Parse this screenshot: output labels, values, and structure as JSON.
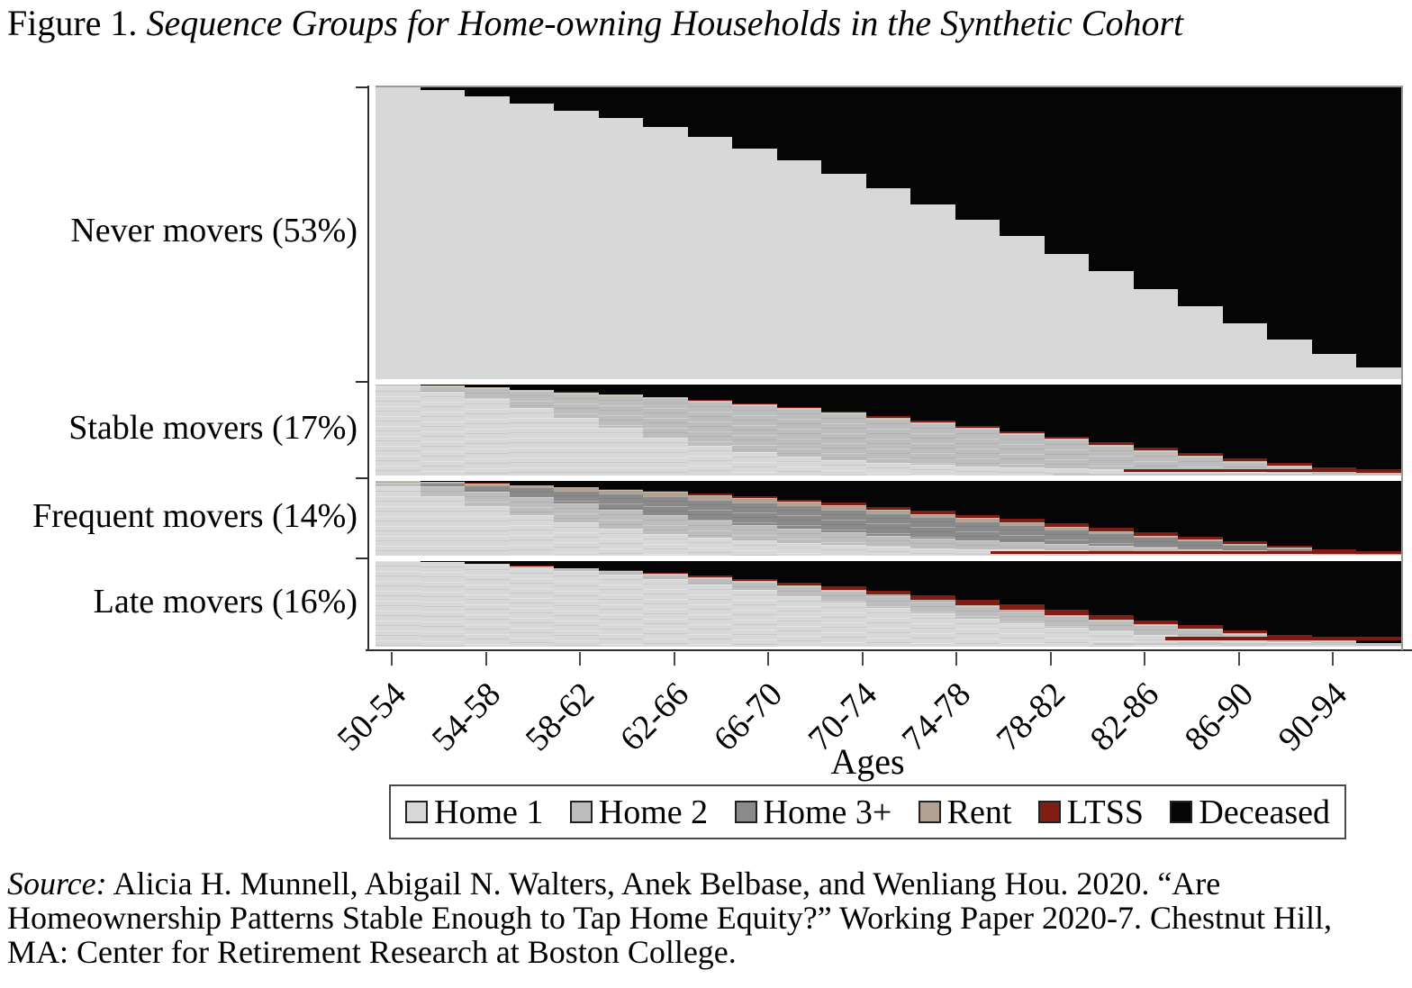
{
  "title": {
    "figure_label": "Figure 1.",
    "text": "Sequence Groups for Home-owning Households in the Synthetic Cohort"
  },
  "chart_data": {
    "type": "sequence-index",
    "description": "Sequence (status) plot: share of households in each housing state by age, for four mover groups. Values are estimated fractions per 2-year period read from the figure.",
    "x_axis": {
      "label": "Ages",
      "tick_labels": [
        "50-54",
        "54-58",
        "58-62",
        "62-66",
        "66-70",
        "70-74",
        "74-78",
        "78-82",
        "82-86",
        "86-90",
        "90-94"
      ],
      "age_start": 50,
      "age_end": 96,
      "periods": 23,
      "period_width_years": 2
    },
    "states": [
      {
        "key": "home1",
        "label": "Home 1",
        "color": "#d8d8d8"
      },
      {
        "key": "home2",
        "label": "Home 2",
        "color": "#bdbdbd"
      },
      {
        "key": "home3plus",
        "label": "Home 3+",
        "color": "#8a8a8a"
      },
      {
        "key": "rent",
        "label": "Rent",
        "color": "#b0a190"
      },
      {
        "key": "ltss",
        "label": "LTSS",
        "color": "#811d12"
      },
      {
        "key": "deceased",
        "label": "Deceased",
        "color": "#050505"
      }
    ],
    "stack_order_bottom_to_top": [
      "home1",
      "home2",
      "home3plus",
      "rent",
      "ltss",
      "deceased"
    ],
    "groups": [
      {
        "name": "Never movers",
        "share_pct": 53,
        "label": "Never movers (53%)",
        "composition": {
          "home1": [
            1.0,
            0.99,
            0.97,
            0.945,
            0.92,
            0.895,
            0.865,
            0.83,
            0.79,
            0.75,
            0.705,
            0.655,
            0.6,
            0.545,
            0.49,
            0.43,
            0.37,
            0.31,
            0.25,
            0.19,
            0.135,
            0.085,
            0.04
          ],
          "home2": [
            0,
            0,
            0,
            0,
            0,
            0,
            0,
            0,
            0,
            0,
            0,
            0,
            0,
            0,
            0,
            0,
            0,
            0,
            0,
            0,
            0,
            0,
            0
          ],
          "home3plus": [
            0,
            0,
            0,
            0,
            0,
            0,
            0,
            0,
            0,
            0,
            0,
            0,
            0,
            0,
            0,
            0,
            0,
            0,
            0,
            0,
            0,
            0,
            0
          ],
          "rent": [
            0,
            0,
            0,
            0,
            0,
            0,
            0,
            0,
            0,
            0,
            0,
            0,
            0,
            0,
            0,
            0,
            0,
            0,
            0,
            0,
            0,
            0,
            0
          ],
          "ltss": [
            0,
            0,
            0,
            0,
            0,
            0,
            0,
            0,
            0,
            0,
            0,
            0,
            0,
            0,
            0,
            0,
            0,
            0,
            0,
            0,
            0,
            0,
            0
          ],
          "deceased": [
            0,
            0.01,
            0.03,
            0.055,
            0.08,
            0.105,
            0.135,
            0.17,
            0.21,
            0.25,
            0.295,
            0.345,
            0.4,
            0.455,
            0.51,
            0.57,
            0.63,
            0.69,
            0.75,
            0.81,
            0.865,
            0.915,
            0.96
          ]
        }
      },
      {
        "name": "Stable movers",
        "share_pct": 17,
        "label": "Stable movers (17%)",
        "composition": {
          "home1": [
            0.98,
            0.92,
            0.84,
            0.74,
            0.63,
            0.52,
            0.42,
            0.33,
            0.26,
            0.21,
            0.17,
            0.14,
            0.12,
            0.1,
            0.09,
            0.08,
            0.07,
            0.06,
            0.05,
            0.04,
            0.03,
            0.02,
            0.01
          ],
          "home2": [
            0.01,
            0.058,
            0.117,
            0.191,
            0.275,
            0.359,
            0.428,
            0.482,
            0.51,
            0.518,
            0.51,
            0.487,
            0.45,
            0.413,
            0.365,
            0.312,
            0.26,
            0.208,
            0.155,
            0.105,
            0.065,
            0.035,
            0.012
          ],
          "home3plus": [
            0,
            0,
            0,
            0,
            0,
            0,
            0,
            0,
            0,
            0,
            0,
            0,
            0,
            0,
            0,
            0,
            0,
            0,
            0,
            0,
            0,
            0,
            0
          ],
          "rent": [
            0.01,
            0.01,
            0.01,
            0.01,
            0.01,
            0.01,
            0.01,
            0.01,
            0.01,
            0.01,
            0.01,
            0.01,
            0.01,
            0.01,
            0.01,
            0.01,
            0.01,
            0.01,
            0.01,
            0.01,
            0.01,
            0.005,
            0.003
          ],
          "ltss": [
            0,
            0.002,
            0.003,
            0.004,
            0.005,
            0.006,
            0.007,
            0.008,
            0.01,
            0.012,
            0.015,
            0.018,
            0.02,
            0.022,
            0.025,
            0.028,
            0.03,
            0.032,
            0.035,
            0.035,
            0.03,
            0.025,
            0.015
          ],
          "deceased": [
            0,
            0.01,
            0.03,
            0.055,
            0.08,
            0.105,
            0.135,
            0.17,
            0.21,
            0.25,
            0.295,
            0.345,
            0.4,
            0.455,
            0.51,
            0.57,
            0.63,
            0.69,
            0.75,
            0.81,
            0.865,
            0.915,
            0.96
          ]
        }
      },
      {
        "name": "Frequent movers",
        "share_pct": 14,
        "label": "Frequent movers (14%)",
        "composition": {
          "home1": [
            0.93,
            0.8,
            0.66,
            0.54,
            0.44,
            0.36,
            0.29,
            0.24,
            0.2,
            0.17,
            0.14,
            0.12,
            0.1,
            0.09,
            0.08,
            0.07,
            0.06,
            0.05,
            0.04,
            0.03,
            0.02,
            0.015,
            0.008
          ],
          "home2": [
            0.05,
            0.13,
            0.2,
            0.24,
            0.26,
            0.26,
            0.25,
            0.23,
            0.21,
            0.19,
            0.17,
            0.15,
            0.13,
            0.11,
            0.1,
            0.085,
            0.07,
            0.06,
            0.05,
            0.04,
            0.03,
            0.02,
            0.008
          ],
          "home3plus": [
            0.01,
            0.04,
            0.08,
            0.13,
            0.17,
            0.21,
            0.25,
            0.28,
            0.3,
            0.31,
            0.31,
            0.3,
            0.285,
            0.26,
            0.23,
            0.2,
            0.17,
            0.14,
            0.11,
            0.08,
            0.05,
            0.025,
            0.012
          ],
          "rent": [
            0.008,
            0.015,
            0.025,
            0.03,
            0.04,
            0.05,
            0.06,
            0.06,
            0.055,
            0.05,
            0.05,
            0.045,
            0.04,
            0.04,
            0.035,
            0.03,
            0.025,
            0.02,
            0.015,
            0.01,
            0.008,
            0.005,
            0.002
          ],
          "ltss": [
            0.002,
            0.005,
            0.005,
            0.005,
            0.01,
            0.015,
            0.015,
            0.02,
            0.025,
            0.03,
            0.035,
            0.04,
            0.045,
            0.045,
            0.045,
            0.045,
            0.045,
            0.04,
            0.035,
            0.03,
            0.027,
            0.02,
            0.01
          ],
          "deceased": [
            0,
            0.01,
            0.03,
            0.055,
            0.08,
            0.105,
            0.135,
            0.17,
            0.21,
            0.25,
            0.295,
            0.345,
            0.4,
            0.455,
            0.51,
            0.57,
            0.63,
            0.69,
            0.75,
            0.81,
            0.865,
            0.915,
            0.96
          ]
        }
      },
      {
        "name": "Late movers",
        "share_pct": 16,
        "label": "Late movers (16%)",
        "composition": {
          "home1": [
            1.0,
            0.985,
            0.955,
            0.92,
            0.88,
            0.84,
            0.79,
            0.73,
            0.66,
            0.59,
            0.52,
            0.45,
            0.385,
            0.33,
            0.275,
            0.225,
            0.18,
            0.14,
            0.105,
            0.075,
            0.05,
            0.03,
            0.012
          ],
          "home2": [
            0,
            0.004,
            0.011,
            0.019,
            0.031,
            0.042,
            0.057,
            0.074,
            0.095,
            0.116,
            0.132,
            0.143,
            0.145,
            0.14,
            0.138,
            0.131,
            0.122,
            0.108,
            0.093,
            0.073,
            0.054,
            0.035,
            0.018
          ],
          "home3plus": [
            0,
            0,
            0,
            0,
            0,
            0,
            0,
            0,
            0,
            0,
            0,
            0,
            0,
            0,
            0,
            0,
            0,
            0,
            0,
            0,
            0,
            0,
            0
          ],
          "rent": [
            0,
            0,
            0.002,
            0.003,
            0.004,
            0.005,
            0.006,
            0.008,
            0.01,
            0.012,
            0.013,
            0.014,
            0.015,
            0.015,
            0.015,
            0.014,
            0.013,
            0.012,
            0.01,
            0.008,
            0.006,
            0.004,
            0.002
          ],
          "ltss": [
            0,
            0.001,
            0.002,
            0.003,
            0.005,
            0.008,
            0.012,
            0.018,
            0.025,
            0.032,
            0.04,
            0.048,
            0.055,
            0.06,
            0.062,
            0.06,
            0.055,
            0.05,
            0.042,
            0.034,
            0.025,
            0.016,
            0.008
          ],
          "deceased": [
            0,
            0.01,
            0.03,
            0.055,
            0.08,
            0.105,
            0.135,
            0.17,
            0.21,
            0.25,
            0.295,
            0.345,
            0.4,
            0.455,
            0.51,
            0.57,
            0.63,
            0.69,
            0.75,
            0.81,
            0.865,
            0.915,
            0.96
          ]
        }
      }
    ],
    "legend_position": "bottom"
  },
  "legend": {
    "items": [
      {
        "label": "Home 1",
        "color": "#d8d8d8"
      },
      {
        "label": "Home 2",
        "color": "#bdbdbd"
      },
      {
        "label": "Home 3+",
        "color": "#8a8a8a"
      },
      {
        "label": "Rent",
        "color": "#b0a190"
      },
      {
        "label": "LTSS",
        "color": "#811d12"
      },
      {
        "label": "Deceased",
        "color": "#050505"
      }
    ]
  },
  "source": {
    "prefix": "Source:",
    "text": " Alicia H. Munnell, Abigail N. Walters, Anek Belbase, and Wenliang Hou. 2020. “Are Homeownership Patterns Stable Enough to Tap Home Equity?” Working Paper 2020-7. Chestnut Hill, MA: Center for Retirement Research at Boston College."
  }
}
